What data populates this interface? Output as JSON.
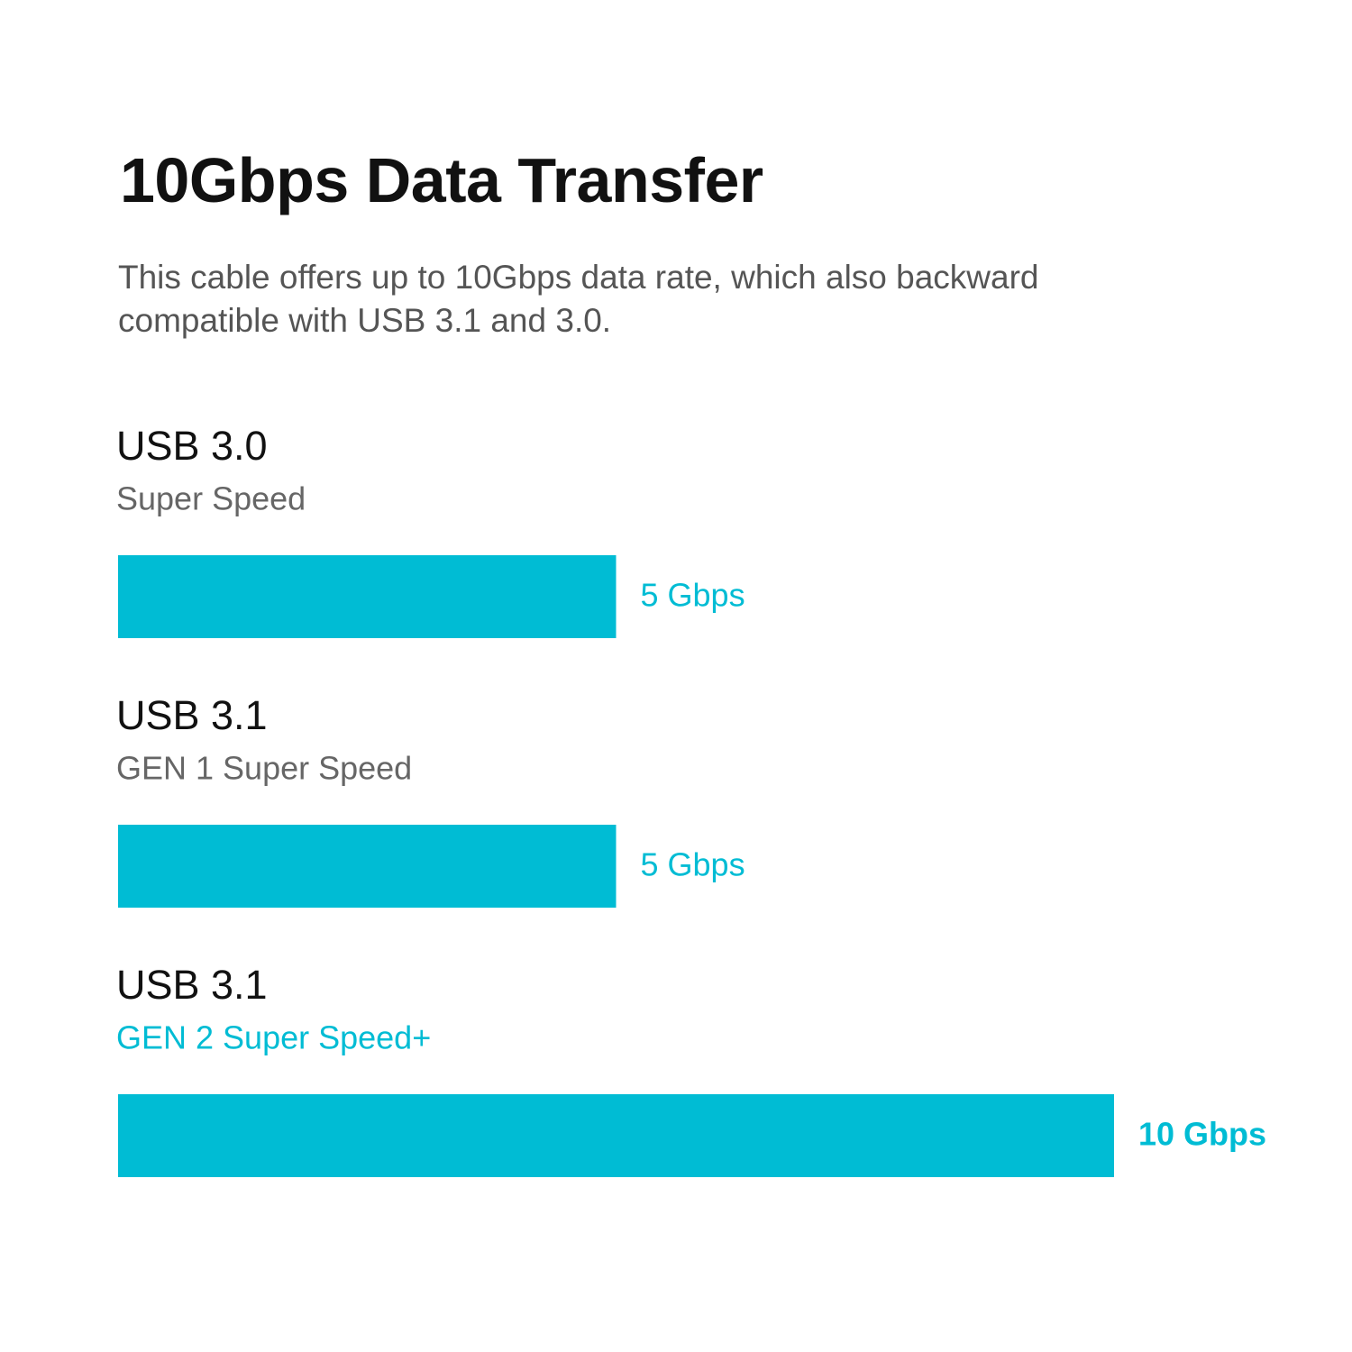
{
  "chart_data": {
    "type": "bar",
    "title": "10Gbps Data Transfer",
    "subtitle": "This cable offers up to 10Gbps data rate, which also backward compatible with USB 3.1 and 3.0.",
    "categories": [
      "USB 3.0",
      "USB 3.1",
      "USB 3.1"
    ],
    "sublabels": [
      "Super Speed",
      "GEN 1 Super Speed",
      "GEN 2 Super Speed+"
    ],
    "values": [
      5,
      5,
      10
    ],
    "value_labels": [
      "5 Gbps",
      "5 Gbps",
      "10 Gbps"
    ],
    "color": "#00bcd4"
  }
}
